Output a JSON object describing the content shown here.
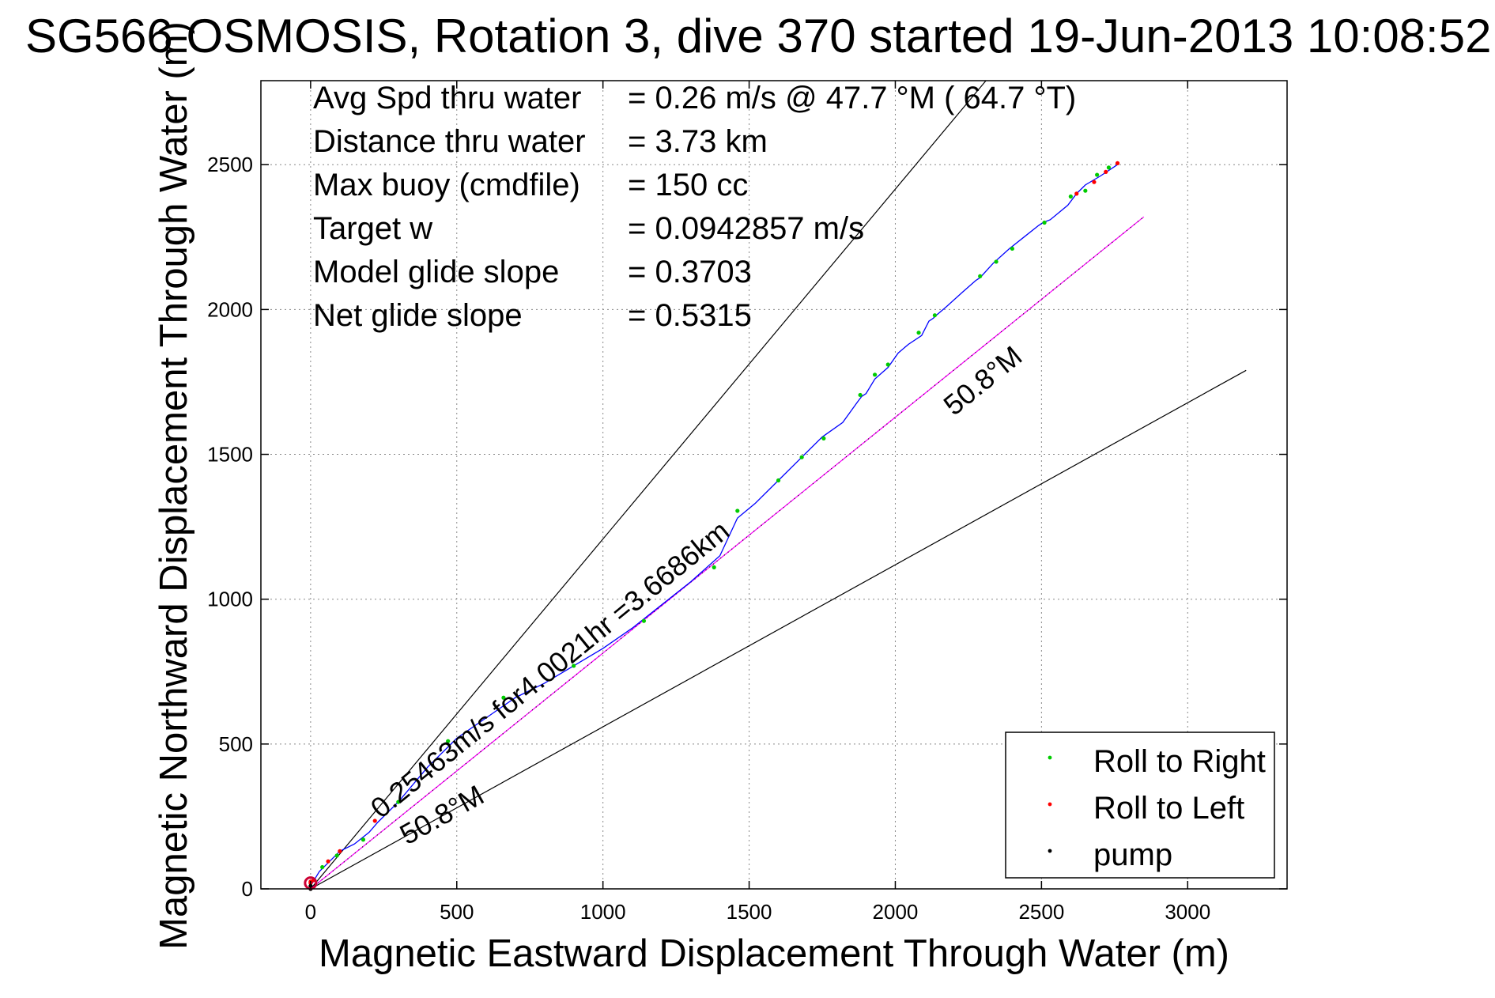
{
  "title": "SG566 OSMOSIS, Rotation 3, dive 370 started 19-Jun-2013 10:08:52",
  "chart_data": {
    "type": "line",
    "xlabel": "Magnetic Eastward Displacement Through Water (m)",
    "ylabel": "Magnetic Northward Displacement Through Water (m)",
    "xlim": [
      -170,
      3340
    ],
    "ylim": [
      0,
      2790
    ],
    "xticks": [
      0,
      500,
      1000,
      1500,
      2000,
      2500,
      3000
    ],
    "yticks": [
      0,
      500,
      1000,
      1500,
      2000,
      2500
    ],
    "tick_labels_x": [
      "0",
      "500",
      "1000",
      "1500",
      "2000",
      "2500",
      "3000"
    ],
    "tick_labels_y": [
      "0",
      "500",
      "1000",
      "1500",
      "2000",
      "2500"
    ],
    "grid": true,
    "grid_style": "dotted",
    "legend_placement": "bottom-right",
    "stats": [
      {
        "label": "Avg Spd thru water",
        "value": "=  0.26 m/s @  47.7 °M ( 64.7 °T)"
      },
      {
        "label": "Distance thru water",
        "value": "=  3.73 km"
      },
      {
        "label": "Max buoy (cmdfile)",
        "value": "= 150 cc"
      },
      {
        "label": "Target w",
        "value": "= 0.0942857 m/s"
      },
      {
        "label": "Model glide slope",
        "value": "= 0.3703"
      },
      {
        "label": "Net glide slope",
        "value": "= 0.5315"
      }
    ],
    "track": {
      "color": "#0000ff",
      "x": [
        0,
        30,
        60,
        100,
        150,
        200,
        230,
        300,
        400,
        500,
        600,
        700,
        800,
        900,
        1000,
        1100,
        1200,
        1300,
        1400,
        1460,
        1520,
        1600,
        1680,
        1750,
        1820,
        1870,
        1885,
        1900,
        1930,
        1975,
        2010,
        2045,
        2090,
        2115,
        2130,
        2140,
        2175,
        2230,
        2275,
        2290,
        2335,
        2390,
        2440,
        2490,
        2505,
        2530,
        2590,
        2620,
        2650,
        2700,
        2760
      ],
      "y": [
        10,
        60,
        90,
        130,
        155,
        195,
        230,
        300,
        420,
        520,
        590,
        660,
        710,
        770,
        830,
        900,
        980,
        1060,
        1150,
        1280,
        1330,
        1410,
        1490,
        1560,
        1610,
        1680,
        1700,
        1710,
        1760,
        1800,
        1850,
        1880,
        1910,
        1960,
        1970,
        1980,
        2010,
        2060,
        2100,
        2110,
        2160,
        2210,
        2250,
        2290,
        2300,
        2310,
        2360,
        2400,
        2430,
        2460,
        2500
      ]
    },
    "series": [
      {
        "name": "Roll to Right",
        "color": "#00cc00",
        "x": [
          40,
          90,
          180,
          300,
          470,
          660,
          900,
          1140,
          1380,
          1460,
          1600,
          1680,
          1755,
          1880,
          1930,
          1975,
          2080,
          2135,
          2290,
          2345,
          2400,
          2510,
          2600,
          2650,
          2690,
          2730
        ],
        "y": [
          75,
          115,
          170,
          300,
          510,
          660,
          770,
          925,
          1110,
          1305,
          1410,
          1490,
          1555,
          1705,
          1775,
          1810,
          1920,
          1980,
          2115,
          2165,
          2210,
          2300,
          2390,
          2410,
          2465,
          2490
        ]
      },
      {
        "name": "Roll to Left",
        "color": "#ff0000",
        "x": [
          0,
          0,
          10,
          60,
          100,
          220,
          2620,
          2680,
          2720,
          2760
        ],
        "y": [
          20,
          25,
          30,
          95,
          130,
          235,
          2400,
          2440,
          2475,
          2505
        ]
      },
      {
        "name": "pump",
        "color": "#000000",
        "x": [
          0,
          0
        ],
        "y": [
          0,
          10
        ]
      }
    ],
    "reference_lines": [
      {
        "color": "#000000",
        "x": [
          0,
          2310
        ],
        "y": [
          0,
          2790
        ]
      },
      {
        "color": "#000000",
        "x": [
          0,
          3200
        ],
        "y": [
          0,
          1790
        ]
      },
      {
        "color": "#ff00ff",
        "x": [
          0,
          2850
        ],
        "y": [
          0,
          2320
        ]
      },
      {
        "color": "#000000",
        "x": [
          0,
          2850
        ],
        "y": [
          0,
          2320
        ],
        "dashed": true
      }
    ],
    "annotations": [
      {
        "text": "0.25463m/s for4.0021hr =3.6686km",
        "x": 240,
        "y": 240,
        "angle": 39.1
      },
      {
        "text": "50.8°M",
        "x": 2200,
        "y": 1630,
        "angle": 39.1
      },
      {
        "text": "50.8°M",
        "x": 330,
        "y": 150,
        "angle": 29.2
      }
    ]
  }
}
